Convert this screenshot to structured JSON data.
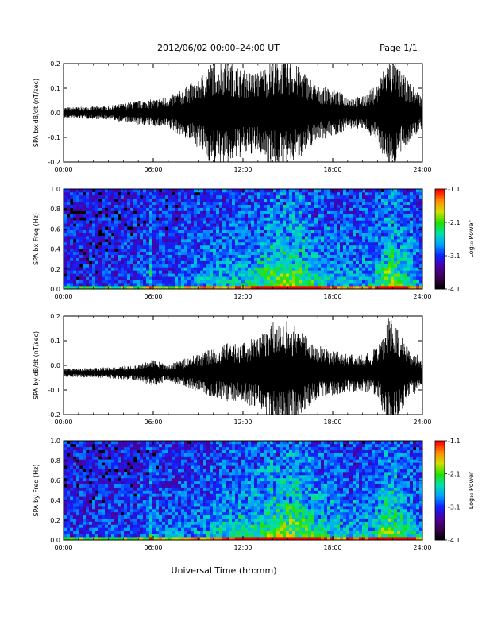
{
  "header": {
    "title": "2012/06/02  00:00–24:00 UT",
    "page": "Page 1/1"
  },
  "xaxis": {
    "title": "Universal Time (hh:mm)",
    "ticks": [
      "00:00",
      "06:00",
      "12:00",
      "18:00",
      "24:00"
    ],
    "range_hours": [
      0,
      24
    ]
  },
  "colorbar": {
    "label": "Log₁₀ Power",
    "ticks": [
      "-1.1",
      "-2.1",
      "-3.1",
      "-4.1"
    ],
    "range": [
      -4.1,
      -1.1
    ],
    "colors": [
      "#000000",
      "#3a0050",
      "#4a00a0",
      "#1020ff",
      "#00a0ff",
      "#00e0b0",
      "#20e000",
      "#d0e000",
      "#ff9000",
      "#ff0000"
    ]
  },
  "chart_data": [
    {
      "type": "line",
      "panel": "bx-waveform",
      "ylabel": "SPA bx dB/dt (nT/sec)",
      "ylim": [
        -0.2,
        0.2
      ],
      "yticks": [
        "0.2",
        "0.1",
        "0.0",
        "-0.1",
        "-0.2"
      ],
      "x_hours": [
        0,
        3,
        5,
        6,
        7,
        8,
        9,
        10,
        11,
        12,
        13,
        14,
        15,
        16,
        17,
        18,
        19,
        20,
        21,
        21.7,
        22,
        23,
        24
      ],
      "envelope": [
        0.02,
        0.025,
        0.045,
        0.05,
        0.06,
        0.09,
        0.13,
        0.2,
        0.2,
        0.16,
        0.15,
        0.2,
        0.2,
        0.16,
        0.1,
        0.09,
        0.06,
        0.06,
        0.11,
        0.2,
        0.2,
        0.12,
        0.06
      ],
      "baseline": 0.0
    },
    {
      "type": "heatmap",
      "panel": "bx-spectrogram",
      "ylabel": "SPA bx Freq (Hz)",
      "ylim": [
        0.0,
        1.0
      ],
      "yticks": [
        "1.0",
        "0.8",
        "0.6",
        "0.4",
        "0.2",
        "0.0"
      ],
      "zlim": [
        -4.1,
        -1.1
      ],
      "activity_hours": [
        0,
        3,
        5,
        6,
        7,
        8,
        9,
        10,
        11,
        12,
        13,
        14,
        15,
        16,
        17,
        18,
        19,
        20,
        21,
        21.7,
        22,
        23,
        24
      ],
      "activity": [
        0.1,
        0.1,
        0.2,
        0.25,
        0.2,
        0.3,
        0.35,
        0.45,
        0.45,
        0.5,
        0.6,
        0.8,
        0.9,
        0.8,
        0.55,
        0.45,
        0.4,
        0.4,
        0.5,
        0.95,
        0.9,
        0.55,
        0.3
      ],
      "spike_hours": [
        5.75,
        21.0
      ]
    },
    {
      "type": "line",
      "panel": "by-waveform",
      "ylabel": "SPA by dB/dt (nT/sec)",
      "ylim": [
        -0.2,
        0.2
      ],
      "yticks": [
        "0.2",
        "0.1",
        "0.0",
        "-0.1",
        "-0.2"
      ],
      "x_hours": [
        0,
        3,
        5,
        6,
        7,
        8,
        9,
        10,
        11,
        12,
        13,
        14,
        15,
        16,
        17,
        18,
        19,
        20,
        21,
        21.7,
        22,
        23,
        24
      ],
      "envelope": [
        0.015,
        0.02,
        0.03,
        0.05,
        0.03,
        0.05,
        0.07,
        0.09,
        0.11,
        0.11,
        0.14,
        0.2,
        0.2,
        0.15,
        0.1,
        0.09,
        0.07,
        0.07,
        0.09,
        0.2,
        0.2,
        0.1,
        0.05
      ],
      "baseline": -0.03
    },
    {
      "type": "heatmap",
      "panel": "by-spectrogram",
      "ylabel": "SPA by Freq (Hz)",
      "ylim": [
        0.0,
        1.0
      ],
      "yticks": [
        "1.0",
        "0.8",
        "0.6",
        "0.4",
        "0.2",
        "0.0"
      ],
      "zlim": [
        -4.1,
        -1.1
      ],
      "activity_hours": [
        0,
        3,
        5,
        6,
        7,
        8,
        9,
        10,
        11,
        12,
        13,
        14,
        15,
        16,
        17,
        18,
        19,
        20,
        21,
        21.7,
        22,
        23,
        24
      ],
      "activity": [
        0.15,
        0.15,
        0.2,
        0.3,
        0.25,
        0.3,
        0.35,
        0.45,
        0.5,
        0.55,
        0.65,
        0.8,
        0.9,
        0.85,
        0.6,
        0.5,
        0.45,
        0.45,
        0.55,
        0.95,
        0.9,
        0.6,
        0.35
      ],
      "spike_hours": [
        5.75,
        21.0
      ]
    }
  ]
}
